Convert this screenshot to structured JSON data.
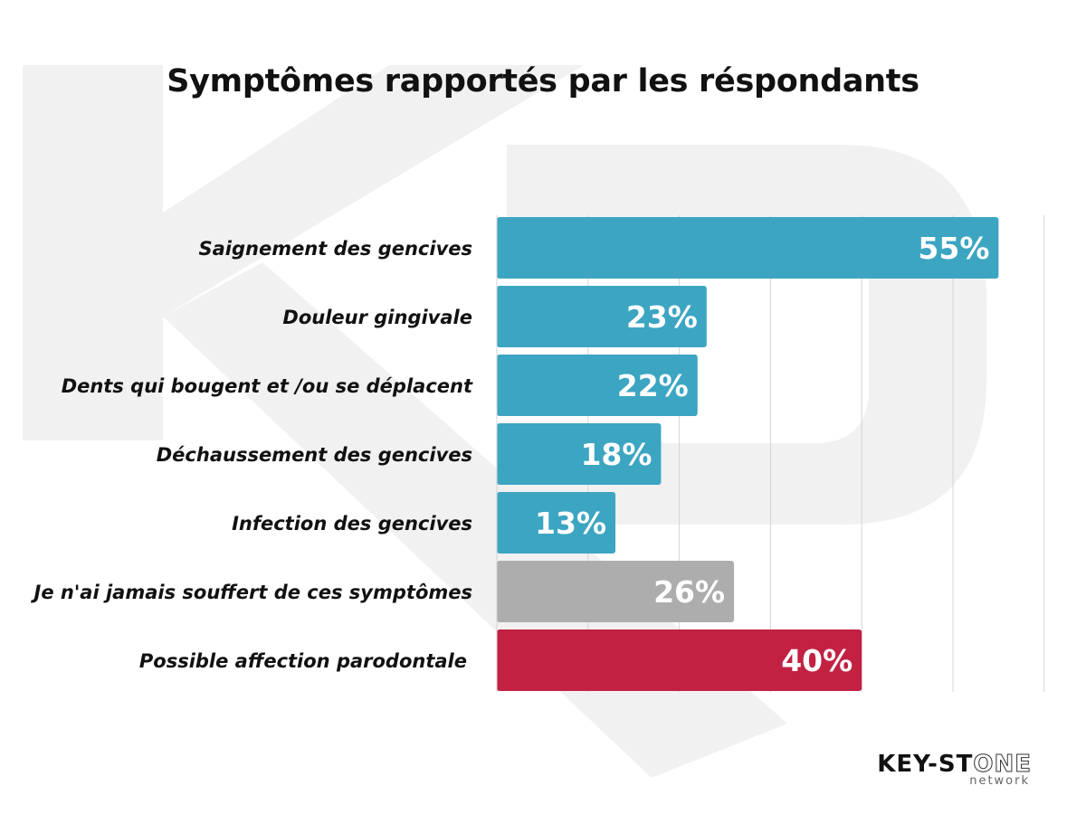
{
  "title": "Symptômes rapportés par les réspondants",
  "chart_data": {
    "type": "bar",
    "orientation": "horizontal",
    "title": "Symptômes rapportés par les réspondants",
    "categories": [
      "Saignement des gencives",
      "Douleur gingivale",
      "Dents qui bougent et /ou se déplacent",
      "Déchaussement des gencives",
      "Infection des gencives",
      "Je n'ai jamais souffert de ces symptômes",
      "Possible affection parodontale"
    ],
    "values": [
      55,
      23,
      22,
      18,
      13,
      26,
      40
    ],
    "value_labels": [
      "55%",
      "23%",
      "22%",
      "18%",
      "13%",
      "26%",
      "40%"
    ],
    "bar_colors": [
      "#3ca5c2",
      "#3ca5c2",
      "#3ca5c2",
      "#3ca5c2",
      "#3ca5c2",
      "#adadad",
      "#c22142"
    ],
    "xlim": [
      0,
      60
    ],
    "grid": true,
    "xlabel": "",
    "ylabel": ""
  },
  "logo": {
    "main_prefix": "KEY-ST",
    "main_suffix": "ONE",
    "subtitle": "network"
  }
}
